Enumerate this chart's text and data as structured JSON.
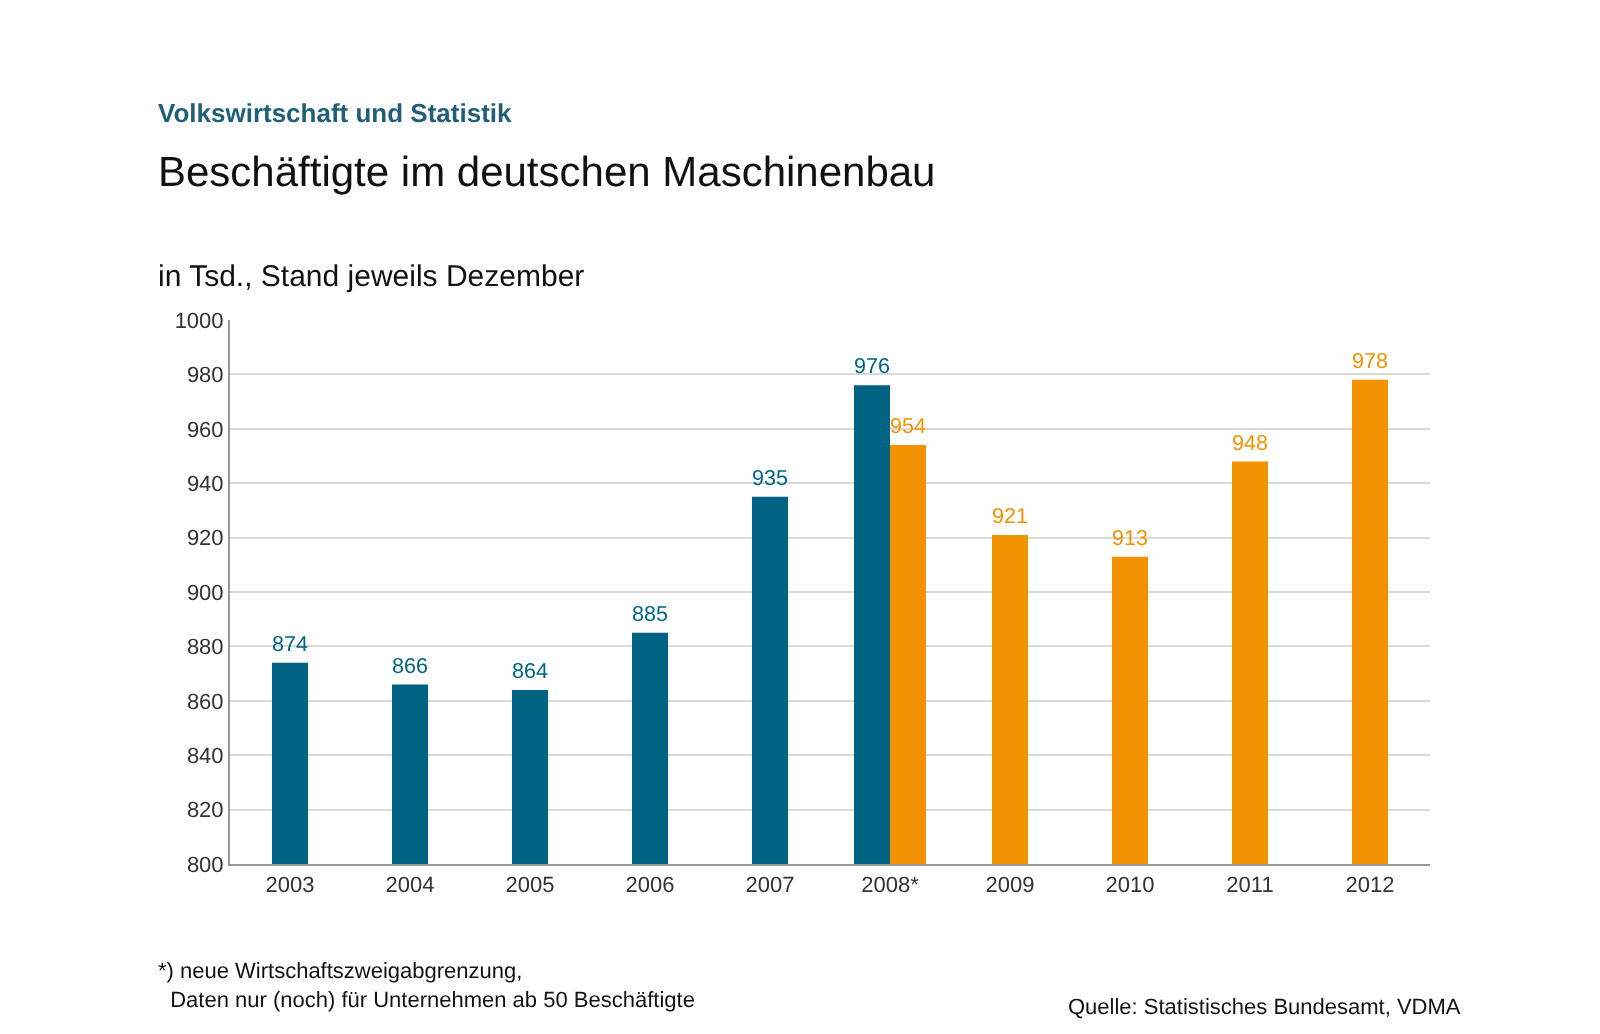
{
  "chart_data": {
    "type": "bar",
    "title": "Beschäftigte im deutschen Maschinenbau",
    "subtitle": "Volkswirtschaft und Statistik",
    "ylabel": "in Tsd., Stand jeweils Dezember",
    "categories": [
      "2003",
      "2004",
      "2005",
      "2006",
      "2007",
      "2008*",
      "2009",
      "2010",
      "2011",
      "2012"
    ],
    "series": [
      {
        "color": "#006384",
        "values": [
          874,
          866,
          864,
          885,
          935,
          976,
          null,
          null,
          null,
          null
        ]
      },
      {
        "color": "#f39200",
        "values": [
          null,
          null,
          null,
          null,
          null,
          954,
          921,
          913,
          948,
          978
        ]
      }
    ],
    "ylim": [
      800,
      1000
    ],
    "yticks": [
      800,
      820,
      840,
      860,
      880,
      900,
      920,
      940,
      960,
      980,
      1000
    ],
    "grid": "y",
    "data_labels": true,
    "annotations": [
      "*) neue Wirtschaftszweigabgrenzung,\nDaten nur (noch) für Unternehmen ab 50 Beschäftigte",
      "Quelle: Statistisches Bundesamt, VDMA"
    ]
  }
}
